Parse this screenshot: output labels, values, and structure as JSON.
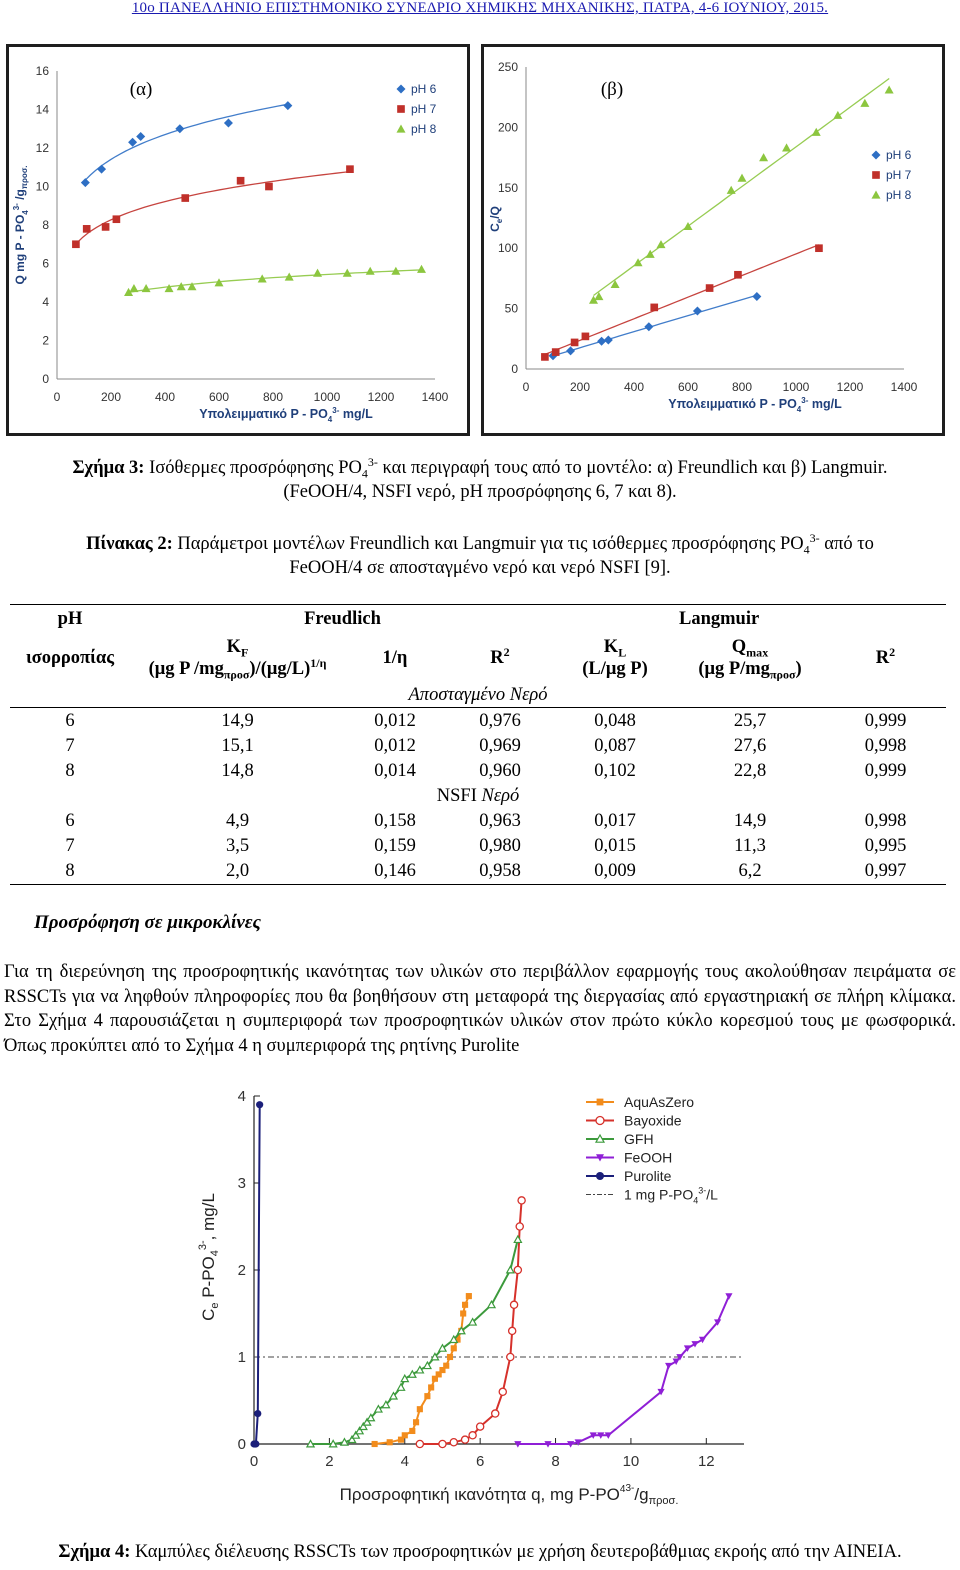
{
  "header": {
    "text": "10ο ΠΑΝΕΛΛΗΝΙΟ ΕΠΙΣΤΗΜΟΝΙΚΟ ΣΥΝΕΔΡΙΟ ΧΗΜΙΚΗΣ ΜΗΧΑΝΙΚΗΣ, ΠΑΤΡΑ, 4-6 ΙΟΥΝΙΟΥ, 2015."
  },
  "figure3": {
    "caption_label": "Σχήμα 3:",
    "caption_text": "Ισόθερμες προσρόφησης PO",
    "caption_sub": "4",
    "caption_sup": "3-",
    "caption_text2": " και περιγραφή τους από το μοντέλο: α) Freundlich και β) Langmuir.",
    "caption_line2": "(FeOOH/4, NSFI νερό, pH προσρόφησης 6, 7 και 8)."
  },
  "chart_data": [
    {
      "type": "scatter",
      "panel_label": "(α)",
      "xlabel": "Υπολειμματικό P - PO4 3- mg/L",
      "ylabel": "Q mg P - PO4 3- /g προσ.",
      "xlim": [
        0,
        1400
      ],
      "ylim": [
        0,
        16
      ],
      "xticks": [
        "0",
        "200",
        "400",
        "600",
        "800",
        "1000",
        "1200",
        "1400"
      ],
      "yticks": [
        "0",
        "2",
        "4",
        "6",
        "8",
        "10",
        "12",
        "14",
        "16"
      ],
      "legend_position": "top-right",
      "series": [
        {
          "name": "pH 6",
          "color": "#2e6fc4",
          "marker": "diamond",
          "x": [
            105,
            165,
            280,
            310,
            455,
            635,
            855
          ],
          "y": [
            10.2,
            10.9,
            12.3,
            12.6,
            13.0,
            13.3,
            14.2
          ]
        },
        {
          "name": "pH 7",
          "color": "#c0302a",
          "marker": "square",
          "x": [
            70,
            110,
            180,
            220,
            475,
            680,
            785,
            1085
          ],
          "y": [
            7.0,
            7.8,
            7.9,
            8.3,
            9.4,
            10.3,
            10.0,
            10.9
          ]
        },
        {
          "name": "pH 8",
          "color": "#8cc63f",
          "marker": "triangle",
          "x": [
            265,
            285,
            330,
            415,
            460,
            500,
            600,
            760,
            860,
            965,
            1075,
            1160,
            1255,
            1350
          ],
          "y": [
            4.5,
            4.7,
            4.7,
            4.7,
            4.8,
            4.8,
            5.0,
            5.2,
            5.3,
            5.5,
            5.5,
            5.6,
            5.6,
            5.7
          ]
        }
      ]
    },
    {
      "type": "scatter",
      "panel_label": "(β)",
      "xlabel": "Υπολειμματικό P - PO4 3- mg/L",
      "ylabel": "Ce/Q",
      "xlim": [
        0,
        1400
      ],
      "ylim": [
        0,
        250
      ],
      "xticks": [
        "0",
        "200",
        "400",
        "600",
        "800",
        "1000",
        "1200",
        "1400"
      ],
      "yticks": [
        "0",
        "50",
        "100",
        "150",
        "200",
        "250"
      ],
      "legend_position": "right",
      "series": [
        {
          "name": "pH 6",
          "color": "#2e6fc4",
          "marker": "diamond",
          "x": [
            100,
            165,
            280,
            305,
            455,
            635,
            855
          ],
          "y": [
            11,
            15,
            23,
            24,
            35,
            48,
            60
          ]
        },
        {
          "name": "pH 7",
          "color": "#c0302a",
          "marker": "square",
          "x": [
            70,
            110,
            180,
            220,
            475,
            680,
            785,
            1085
          ],
          "y": [
            10,
            14,
            22,
            27,
            51,
            67,
            78,
            100
          ]
        },
        {
          "name": "pH 8",
          "color": "#8cc63f",
          "marker": "triangle",
          "x": [
            250,
            270,
            330,
            415,
            460,
            500,
            600,
            760,
            800,
            880,
            965,
            1075,
            1155,
            1255,
            1345
          ],
          "y": [
            57,
            60,
            70,
            88,
            95,
            103,
            118,
            148,
            158,
            175,
            183,
            196,
            210,
            220,
            231
          ]
        }
      ]
    },
    {
      "type": "line",
      "xlabel": "Προσροφητική ικανότητα q, mg P-PO4 3-/gπροσ.",
      "ylabel": "Ce P-PO4 3-, mg/L",
      "xlim": [
        0,
        13
      ],
      "ylim": [
        0,
        4
      ],
      "xticks": [
        "0",
        "2",
        "4",
        "6",
        "8",
        "10",
        "12"
      ],
      "yticks": [
        "0",
        "1",
        "2",
        "3",
        "4"
      ],
      "legend_position": "top-right",
      "reference_line": {
        "name": "1 mg P-PO4 3-/L",
        "y": 1
      },
      "series": [
        {
          "name": "AquAsZero",
          "color": "#f28c1c",
          "marker": "square",
          "x": [
            3.2,
            3.6,
            3.9,
            4.0,
            4.2,
            4.3,
            4.4,
            4.6,
            4.7,
            4.8,
            4.9,
            5.0,
            5.1,
            5.2,
            5.3,
            5.4,
            5.5,
            5.55,
            5.6,
            5.7
          ],
          "y": [
            0.0,
            0.02,
            0.05,
            0.1,
            0.15,
            0.25,
            0.4,
            0.55,
            0.65,
            0.75,
            0.8,
            0.85,
            0.9,
            1.0,
            1.1,
            1.2,
            1.3,
            1.5,
            1.6,
            1.7
          ]
        },
        {
          "name": "Bayoxide",
          "color": "#d6312b",
          "marker": "circle-open",
          "x": [
            4.4,
            5.0,
            5.3,
            5.6,
            5.8,
            6.0,
            6.4,
            6.6,
            6.8,
            6.85,
            6.9,
            7.0,
            7.05,
            7.1
          ],
          "y": [
            0.0,
            0.0,
            0.02,
            0.05,
            0.1,
            0.2,
            0.35,
            0.6,
            1.0,
            1.3,
            1.6,
            2.0,
            2.5,
            2.8
          ]
        },
        {
          "name": "GFH",
          "color": "#3c9a3c",
          "marker": "triangle-open",
          "x": [
            1.5,
            2.1,
            2.4,
            2.6,
            2.7,
            2.8,
            2.9,
            3.0,
            3.1,
            3.3,
            3.5,
            3.7,
            3.9,
            4.0,
            4.2,
            4.4,
            4.6,
            4.8,
            5.0,
            5.3,
            5.5,
            5.8,
            6.3,
            6.8,
            7.0
          ],
          "y": [
            0.0,
            0.0,
            0.02,
            0.05,
            0.1,
            0.15,
            0.2,
            0.25,
            0.3,
            0.4,
            0.45,
            0.55,
            0.65,
            0.75,
            0.8,
            0.85,
            0.9,
            1.0,
            1.1,
            1.2,
            1.3,
            1.4,
            1.6,
            2.0,
            2.35
          ]
        },
        {
          "name": "FeOOH",
          "color": "#8f1fd6",
          "marker": "triangle-down",
          "x": [
            7.0,
            7.8,
            8.4,
            8.6,
            9.0,
            9.2,
            9.4,
            10.8,
            11.0,
            11.2,
            11.3,
            11.5,
            11.7,
            11.9,
            12.3,
            12.6
          ],
          "y": [
            0.0,
            0.0,
            0.0,
            0.02,
            0.1,
            0.1,
            0.1,
            0.6,
            0.9,
            0.95,
            1.0,
            1.1,
            1.15,
            1.2,
            1.4,
            1.7
          ]
        },
        {
          "name": "Purolite",
          "color": "#1b1f7a",
          "marker": "circle",
          "x": [
            0.0,
            0.05,
            0.1,
            0.15
          ],
          "y": [
            0.0,
            0.0,
            0.35,
            3.9
          ]
        }
      ]
    }
  ],
  "table2": {
    "caption_label": "Πίνακας 2:",
    "caption_text": "Παράμετροι μοντέλων Freundlich και Langmuir για τις ισόθερμες προσρόφησης PO",
    "caption_sub": "4",
    "caption_sup": "3-",
    "caption_text2": " από το",
    "caption_line2": "FeOOH/4 σε αποσταγμένο νερό και νερό NSFI [9].",
    "h_ph": "pH",
    "h_ph2": "ισορροπίας",
    "h_freundlich": "Freudlich",
    "h_langmuir": "Langmuir",
    "h_kf": "K",
    "h_kf_sub": "F",
    "h_kf_units": "(μg P /mg",
    "h_kf_units_sub": "προσ",
    "h_kf_units2": ")/(μg/L)",
    "h_kf_units_sup": "1/η",
    "h_inv_n": "1/η",
    "h_r2": "R",
    "h_r2_sup": "2",
    "h_kl": "K",
    "h_kl_sub": "L",
    "h_kl_units": "(L/μg P)",
    "h_qmax": "Q",
    "h_qmax_sub": "max",
    "h_qmax_units": "(μg P/mg",
    "h_qmax_units_sub": "προσ",
    "h_qmax_units2": ")",
    "group1_a": "Αποσταγμένο Νερό",
    "group2_a": "NSFI ",
    "group2_b": "Νερό",
    "rows_distilled": [
      [
        "6",
        "14,9",
        "0,012",
        "0,976",
        "0,048",
        "25,7",
        "0,999"
      ],
      [
        "7",
        "15,1",
        "0,012",
        "0,969",
        "0,087",
        "27,6",
        "0,998"
      ],
      [
        "8",
        "14,8",
        "0,014",
        "0,960",
        "0,102",
        "22,8",
        "0,999"
      ]
    ],
    "rows_nsfi": [
      [
        "6",
        "4,9",
        "0,158",
        "0,963",
        "0,017",
        "14,9",
        "0,998"
      ],
      [
        "7",
        "3,5",
        "0,159",
        "0,980",
        "0,015",
        "11,3",
        "0,995"
      ],
      [
        "8",
        "2,0",
        "0,146",
        "0,958",
        "0,009",
        "6,2",
        "0,997"
      ]
    ]
  },
  "section": {
    "title": "Προσρόφηση σε μικροκλίνες",
    "paragraph": "Για τη διερεύνηση της προσροφητικής ικανότητας των υλικών στο περιβάλλον εφαρμογής τους ακολούθησαν πειράματα σε RSSCTs για να ληφθούν πληροφορίες που θα βοηθήσουν στη μεταφορά της διεργασίας από εργαστηριακή σε πλήρη κλίμακα. Στο Σχήμα 4 παρουσιάζεται η συμπεριφορά των προσροφητικών υλικών στον πρώτο κύκλο κορεσμού τους με φωσφορικά. Όπως προκύπτει από το Σχήμα 4 η συμπεριφορά της ρητίνης Purolite"
  },
  "figure4": {
    "caption_label": "Σχήμα 4:",
    "caption_text": "Καμπύλες διέλευσης RSSCTs των προσροφητικών με χρήση δευτεροβάθμιας εκροής από την ΑΙΝΕΙΑ."
  }
}
